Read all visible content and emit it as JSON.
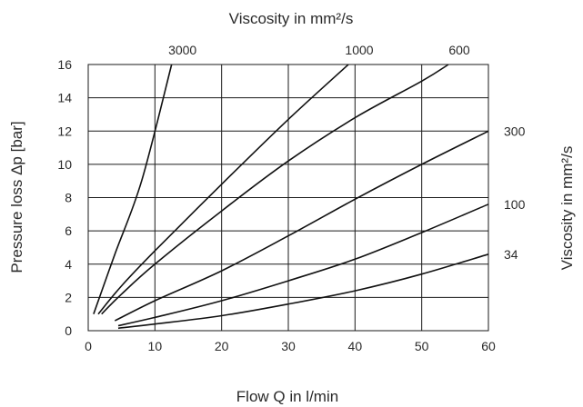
{
  "chart_data": {
    "type": "line",
    "xlabel": "Flow Q in l/min",
    "ylabel": "Pressure loss Δp [bar]",
    "top_label": "Viscosity in mm²/s",
    "right_label": "Viscosity in mm²/s",
    "xlim": [
      0,
      60
    ],
    "ylim": [
      0,
      16
    ],
    "xticks": [
      "0",
      "10",
      "20",
      "30",
      "40",
      "50",
      "60"
    ],
    "yticks": [
      "0",
      "2",
      "4",
      "6",
      "8",
      "10",
      "12",
      "14",
      "16"
    ],
    "grid": true,
    "series": [
      {
        "name": "3000",
        "label_position": "top",
        "points": [
          [
            0.8,
            1.0
          ],
          [
            4,
            4.6
          ],
          [
            8,
            9.0
          ],
          [
            12.5,
            16
          ]
        ]
      },
      {
        "name": "1000",
        "label_position": "top",
        "points": [
          [
            1.5,
            1.0
          ],
          [
            5,
            2.7
          ],
          [
            10,
            4.8
          ],
          [
            20,
            8.8
          ],
          [
            30,
            12.7
          ],
          [
            39,
            16
          ]
        ]
      },
      {
        "name": "600",
        "label_position": "top",
        "points": [
          [
            2,
            1.0
          ],
          [
            5,
            2.2
          ],
          [
            10,
            4.0
          ],
          [
            20,
            7.2
          ],
          [
            30,
            10.2
          ],
          [
            40,
            12.8
          ],
          [
            50,
            15.0
          ],
          [
            54,
            16
          ]
        ]
      },
      {
        "name": "300",
        "label_position": "right",
        "points": [
          [
            4,
            0.6
          ],
          [
            10,
            1.8
          ],
          [
            20,
            3.6
          ],
          [
            30,
            5.7
          ],
          [
            40,
            7.9
          ],
          [
            50,
            10.0
          ],
          [
            60,
            12.0
          ]
        ]
      },
      {
        "name": "100",
        "label_position": "right",
        "points": [
          [
            4.5,
            0.3
          ],
          [
            10,
            0.8
          ],
          [
            20,
            1.8
          ],
          [
            30,
            3.0
          ],
          [
            40,
            4.3
          ],
          [
            50,
            5.9
          ],
          [
            60,
            7.6
          ]
        ]
      },
      {
        "name": "34",
        "label_position": "right",
        "points": [
          [
            4.5,
            0.15
          ],
          [
            10,
            0.4
          ],
          [
            20,
            0.9
          ],
          [
            30,
            1.6
          ],
          [
            40,
            2.4
          ],
          [
            50,
            3.4
          ],
          [
            60,
            4.6
          ]
        ]
      }
    ]
  }
}
